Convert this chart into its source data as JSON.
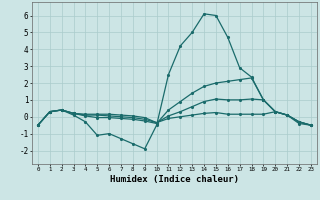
{
  "xlabel": "Humidex (Indice chaleur)",
  "xlim": [
    -0.5,
    23.5
  ],
  "ylim": [
    -2.8,
    6.8
  ],
  "xticks": [
    0,
    1,
    2,
    3,
    4,
    5,
    6,
    7,
    8,
    9,
    10,
    11,
    12,
    13,
    14,
    15,
    16,
    17,
    18,
    19,
    20,
    21,
    22,
    23
  ],
  "yticks": [
    -2,
    -1,
    0,
    1,
    2,
    3,
    4,
    5,
    6
  ],
  "bg_color": "#cce5e5",
  "grid_color": "#aacccc",
  "line_color": "#1a6b6b",
  "lines": [
    {
      "x": [
        0,
        1,
        2,
        3,
        4,
        5,
        6,
        7,
        8,
        9,
        10,
        11,
        12,
        13,
        14,
        15,
        16,
        17,
        18,
        19,
        20,
        21,
        22,
        23
      ],
      "y": [
        -0.5,
        0.3,
        0.4,
        0.1,
        -0.3,
        -1.1,
        -1.0,
        -1.3,
        -1.6,
        -1.9,
        -0.5,
        2.5,
        4.2,
        5.0,
        6.1,
        6.0,
        4.7,
        2.9,
        2.35,
        1.0,
        0.3,
        0.1,
        -0.4,
        -0.5
      ]
    },
    {
      "x": [
        0,
        1,
        2,
        3,
        4,
        5,
        6,
        7,
        8,
        9,
        10,
        11,
        12,
        13,
        14,
        15,
        16,
        17,
        18,
        19,
        20,
        21,
        22,
        23
      ],
      "y": [
        -0.5,
        0.3,
        0.4,
        0.2,
        0.05,
        -0.05,
        -0.05,
        -0.1,
        -0.15,
        -0.25,
        -0.4,
        0.4,
        0.9,
        1.4,
        1.8,
        2.0,
        2.1,
        2.2,
        2.3,
        1.0,
        0.3,
        0.1,
        -0.3,
        -0.5
      ]
    },
    {
      "x": [
        0,
        1,
        2,
        3,
        4,
        5,
        6,
        7,
        8,
        9,
        10,
        11,
        12,
        13,
        14,
        15,
        16,
        17,
        18,
        19,
        20,
        21,
        22,
        23
      ],
      "y": [
        -0.5,
        0.3,
        0.4,
        0.2,
        0.1,
        0.1,
        0.05,
        0.0,
        -0.05,
        -0.15,
        -0.35,
        0.05,
        0.3,
        0.6,
        0.9,
        1.05,
        1.0,
        1.0,
        1.05,
        1.0,
        0.3,
        0.1,
        -0.3,
        -0.5
      ]
    },
    {
      "x": [
        0,
        1,
        2,
        3,
        4,
        5,
        6,
        7,
        8,
        9,
        10,
        11,
        12,
        13,
        14,
        15,
        16,
        17,
        18,
        19,
        20,
        21,
        22,
        23
      ],
      "y": [
        -0.5,
        0.3,
        0.4,
        0.2,
        0.15,
        0.15,
        0.15,
        0.1,
        0.05,
        -0.05,
        -0.35,
        -0.1,
        0.0,
        0.1,
        0.2,
        0.25,
        0.15,
        0.15,
        0.15,
        0.15,
        0.3,
        0.1,
        -0.3,
        -0.5
      ]
    }
  ]
}
